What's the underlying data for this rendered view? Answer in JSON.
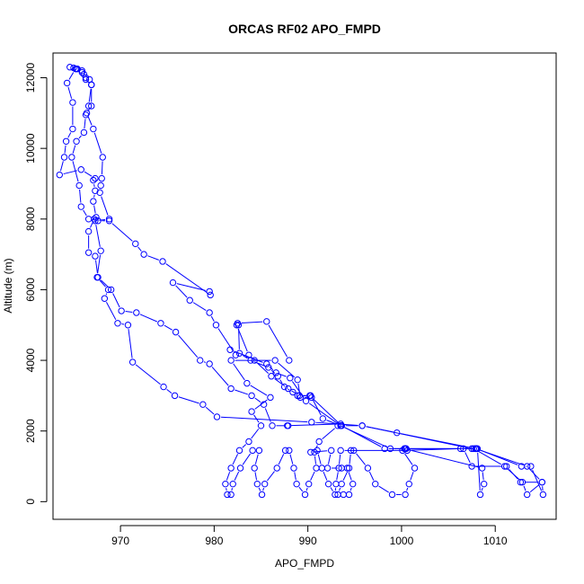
{
  "chart_data": {
    "type": "line",
    "title": "ORCAS RF02 APO_FMPD",
    "xlabel": "APO_FMPD",
    "ylabel": "Altitude (m)",
    "xlim": [
      962.8,
      1016.5
    ],
    "ylim": [
      -500,
      12700
    ],
    "x_ticks": [
      970,
      980,
      990,
      1000,
      1010
    ],
    "y_ticks": [
      0,
      2000,
      4000,
      6000,
      8000,
      10000,
      12000
    ],
    "x_tick_labels": [
      "970",
      "980",
      "990",
      "1000",
      "1010"
    ],
    "y_tick_labels": [
      "0",
      "2000",
      "4000",
      "6000",
      "8000",
      "10000",
      "12000"
    ],
    "grid": false,
    "series": [
      {
        "color": "#0000ff",
        "marker": "open-circle",
        "points": [
          [
            964.6,
            12300
          ],
          [
            965.0,
            12280
          ],
          [
            965.4,
            12250
          ],
          [
            965.9,
            12200
          ],
          [
            966.1,
            12100
          ],
          [
            966.3,
            12000
          ],
          [
            966.7,
            11950
          ],
          [
            966.9,
            11800
          ],
          [
            966.6,
            11200
          ],
          [
            966.4,
            11000
          ],
          [
            967.1,
            10550
          ],
          [
            968.1,
            9750
          ],
          [
            968.0,
            9150
          ],
          [
            967.9,
            8950
          ],
          [
            967.8,
            8750
          ],
          [
            968.8,
            8000
          ],
          [
            967.3,
            7950
          ],
          [
            967.9,
            7100
          ],
          [
            967.5,
            6350
          ],
          [
            968.7,
            6000
          ],
          [
            968.3,
            5750
          ],
          [
            969.7,
            5050
          ],
          [
            970.8,
            5000
          ],
          [
            971.3,
            3950
          ],
          [
            974.6,
            3250
          ],
          [
            975.8,
            3000
          ],
          [
            978.8,
            2750
          ],
          [
            980.3,
            2400
          ],
          [
            990.4,
            2250
          ],
          [
            995.8,
            2150
          ],
          [
            999.5,
            1950
          ],
          [
            1007.9,
            1500
          ],
          [
            1008.0,
            1500
          ],
          [
            1012.8,
            1000
          ],
          [
            1013.8,
            1000
          ],
          [
            1015.1,
            200
          ],
          [
            1015.0,
            550
          ],
          [
            1012.7,
            550
          ],
          [
            1011.2,
            1000
          ],
          [
            1007.5,
            1000
          ],
          [
            1006.6,
            1500
          ],
          [
            1000.5,
            1500
          ],
          [
            1000.4,
            1500
          ],
          [
            998.2,
            1500
          ],
          [
            993.6,
            2150
          ],
          [
            990.2,
            3000
          ],
          [
            989.1,
            3000
          ],
          [
            987.9,
            3200
          ],
          [
            986.1,
            3550
          ],
          [
            984.3,
            4000
          ],
          [
            983.7,
            4150
          ],
          [
            982.4,
            5000
          ],
          [
            982.5,
            5050
          ],
          [
            985.6,
            5100
          ],
          [
            988.0,
            4000
          ]
        ]
      },
      {
        "color": "#0000ff",
        "marker": "open-circle",
        "points": [
          [
            965.2,
            12250
          ],
          [
            964.3,
            11850
          ],
          [
            964.9,
            11300
          ],
          [
            964.9,
            10550
          ],
          [
            964.2,
            10200
          ],
          [
            964.0,
            9750
          ],
          [
            963.5,
            9250
          ],
          [
            965.8,
            9400
          ],
          [
            967.3,
            9150
          ],
          [
            967.1,
            9100
          ],
          [
            967.3,
            8800
          ],
          [
            967.1,
            8500
          ],
          [
            967.4,
            8050
          ],
          [
            967.2,
            8000
          ],
          [
            966.6,
            7650
          ],
          [
            966.6,
            7050
          ],
          [
            967.3,
            6950
          ],
          [
            967.6,
            6350
          ],
          [
            969.0,
            6000
          ],
          [
            970.1,
            5400
          ],
          [
            971.7,
            5350
          ],
          [
            974.3,
            5050
          ],
          [
            975.9,
            4800
          ],
          [
            978.5,
            4000
          ],
          [
            979.5,
            3900
          ],
          [
            981.8,
            3200
          ],
          [
            984.0,
            3000
          ],
          [
            985.3,
            2750
          ],
          [
            986.2,
            2150
          ],
          [
            987.9,
            2150
          ],
          [
            987.8,
            2150
          ],
          [
            993.5,
            2200
          ],
          [
            993.6,
            2150
          ],
          [
            995.8,
            2150
          ],
          [
            1007.5,
            1500
          ],
          [
            1007.9,
            1500
          ],
          [
            1013.4,
            1000
          ],
          [
            1015.0,
            550
          ],
          [
            1013.4,
            200
          ],
          [
            1012.9,
            550
          ],
          [
            1011.0,
            1000
          ],
          [
            1007.7,
            1500
          ],
          [
            1000.4,
            1500
          ],
          [
            998.8,
            1500
          ],
          [
            993.5,
            2150
          ],
          [
            991.6,
            2350
          ],
          [
            990.3,
            3000
          ],
          [
            988.9,
            3000
          ],
          [
            988.4,
            3100
          ],
          [
            987.5,
            3250
          ],
          [
            986.8,
            3550
          ],
          [
            985.8,
            3800
          ],
          [
            983.9,
            4000
          ],
          [
            982.7,
            4200
          ],
          [
            982.6,
            5000
          ]
        ]
      },
      {
        "color": "#0000ff",
        "marker": "open-circle",
        "points": [
          [
            965.3,
            12250
          ],
          [
            965.9,
            12150
          ],
          [
            966.3,
            11950
          ],
          [
            966.9,
            11800
          ],
          [
            966.9,
            11200
          ],
          [
            966.3,
            10950
          ],
          [
            966.1,
            10450
          ],
          [
            965.3,
            10200
          ],
          [
            964.8,
            9750
          ],
          [
            965.6,
            8950
          ],
          [
            965.8,
            8350
          ],
          [
            966.6,
            8000
          ],
          [
            967.6,
            7950
          ],
          [
            968.8,
            7950
          ],
          [
            971.6,
            7300
          ],
          [
            972.5,
            7000
          ],
          [
            974.5,
            6800
          ],
          [
            979.6,
            5850
          ],
          [
            979.5,
            5950
          ],
          [
            975.6,
            6200
          ],
          [
            977.4,
            5700
          ],
          [
            979.5,
            5350
          ],
          [
            980.2,
            5000
          ],
          [
            982.3,
            4150
          ],
          [
            981.7,
            4300
          ],
          [
            985.6,
            3900
          ],
          [
            986.6,
            3650
          ],
          [
            988.1,
            3500
          ],
          [
            989.8,
            2850
          ],
          [
            993.5,
            2150
          ],
          [
            993.2,
            2150
          ],
          [
            991.2,
            1700
          ],
          [
            990.7,
            1400
          ],
          [
            990.9,
            950
          ],
          [
            990.1,
            500
          ],
          [
            989.7,
            200
          ],
          [
            988.8,
            500
          ],
          [
            988.5,
            950
          ],
          [
            988.0,
            1450
          ],
          [
            987.6,
            1450
          ],
          [
            986.7,
            950
          ],
          [
            985.4,
            500
          ],
          [
            985.1,
            200
          ],
          [
            984.6,
            500
          ],
          [
            984.3,
            950
          ],
          [
            984.8,
            1450
          ],
          [
            984.1,
            1450
          ],
          [
            982.8,
            950
          ],
          [
            982.0,
            500
          ],
          [
            981.8,
            200
          ],
          [
            981.4,
            200
          ],
          [
            981.2,
            500
          ],
          [
            981.8,
            950
          ],
          [
            982.7,
            1450
          ],
          [
            983.7,
            1700
          ],
          [
            985.0,
            2150
          ],
          [
            984.0,
            2550
          ],
          [
            986.0,
            2950
          ],
          [
            983.5,
            3350
          ],
          [
            981.8,
            4000
          ],
          [
            986.5,
            4000
          ],
          [
            988.9,
            3450
          ],
          [
            989.2,
            2950
          ],
          [
            990.4,
            2950
          ]
        ]
      },
      {
        "color": "#0000ff",
        "marker": "open-circle",
        "points": [
          [
            993.2,
            200
          ],
          [
            993.6,
            500
          ],
          [
            994.4,
            950
          ],
          [
            994.6,
            1450
          ],
          [
            994.9,
            1450
          ],
          [
            996.4,
            950
          ],
          [
            997.2,
            500
          ],
          [
            999.0,
            200
          ],
          [
            1000.4,
            200
          ],
          [
            1000.8,
            500
          ],
          [
            1001.4,
            950
          ],
          [
            1000.1,
            1450
          ],
          [
            1000.3,
            1500
          ],
          [
            1008.6,
            950
          ],
          [
            1008.8,
            500
          ],
          [
            1008.4,
            200
          ],
          [
            1008.1,
            1500
          ],
          [
            1006.3,
            1500
          ],
          [
            1000.6,
            1450
          ],
          [
            993.5,
            1450
          ],
          [
            993.3,
            950
          ],
          [
            993.0,
            500
          ],
          [
            992.9,
            200
          ],
          [
            992.2,
            500
          ],
          [
            991.5,
            950
          ],
          [
            991.0,
            1450
          ],
          [
            990.3,
            1400
          ],
          [
            992.5,
            1450
          ],
          [
            992.1,
            950
          ],
          [
            993.6,
            950
          ],
          [
            994.2,
            950
          ],
          [
            994.8,
            500
          ],
          [
            994.4,
            200
          ],
          [
            993.8,
            200
          ]
        ]
      }
    ]
  }
}
